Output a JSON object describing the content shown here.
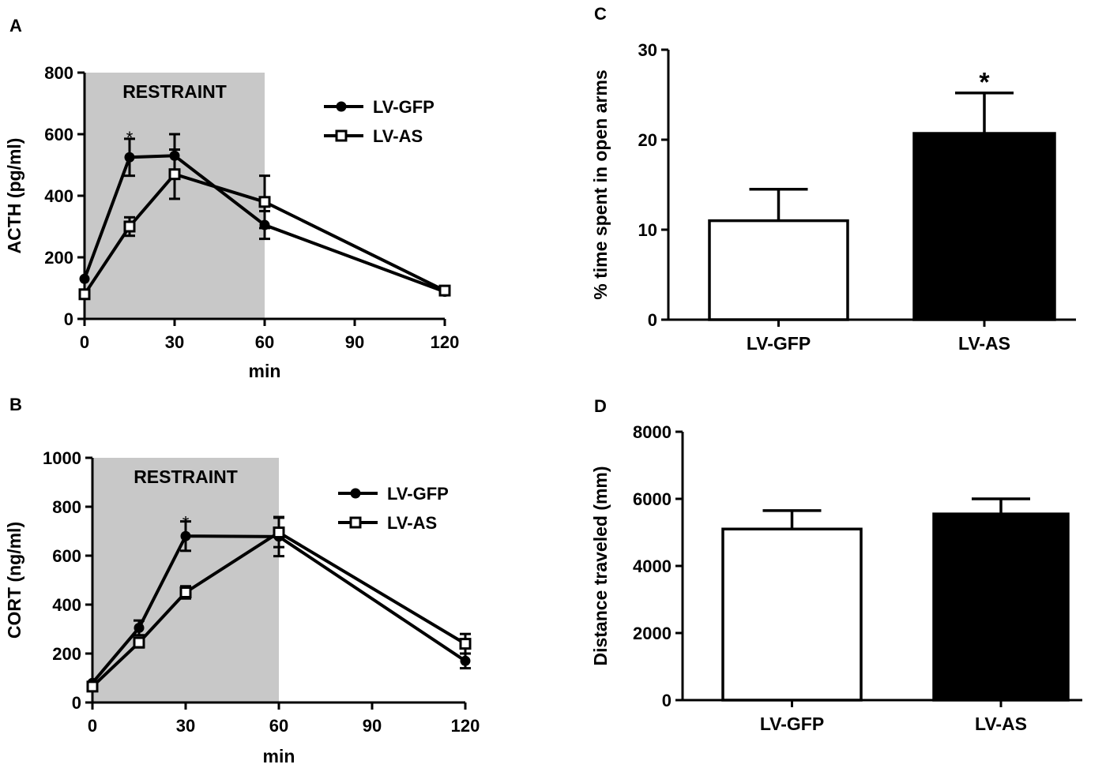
{
  "chart_data": [
    {
      "panel": "A",
      "type": "line",
      "xlabel": "min",
      "ylabel": "ACTH (pg/ml)",
      "x_ticks": [
        0,
        30,
        60,
        90,
        120
      ],
      "y_ticks": [
        0,
        200,
        400,
        600,
        800
      ],
      "xlim": [
        0,
        120
      ],
      "ylim": [
        0,
        800
      ],
      "shaded_region": {
        "label": "RESTRAINT",
        "x_from": 0,
        "x_to": 60
      },
      "legend_position": "top-right",
      "series": [
        {
          "name": "LV-GFP",
          "marker": "filled-circle",
          "x": [
            0,
            15,
            30,
            60,
            120
          ],
          "values": [
            130,
            525,
            530,
            305,
            88
          ],
          "errors": [
            0,
            60,
            70,
            45,
            10
          ]
        },
        {
          "name": "LV-AS",
          "marker": "open-square",
          "x": [
            0,
            15,
            30,
            60,
            120
          ],
          "values": [
            80,
            300,
            470,
            380,
            92
          ],
          "errors": [
            0,
            30,
            80,
            85,
            10
          ]
        }
      ],
      "annotations": [
        {
          "text": "*",
          "x": 15,
          "y": 600
        }
      ]
    },
    {
      "panel": "B",
      "type": "line",
      "xlabel": "min",
      "ylabel": "CORT (ng/ml)",
      "x_ticks": [
        0,
        30,
        60,
        90,
        120
      ],
      "y_ticks": [
        0,
        200,
        400,
        600,
        800,
        1000
      ],
      "xlim": [
        0,
        120
      ],
      "ylim": [
        0,
        1000
      ],
      "shaded_region": {
        "label": "RESTRAINT",
        "x_from": 0,
        "x_to": 60
      },
      "legend_position": "top-right",
      "series": [
        {
          "name": "LV-GFP",
          "marker": "filled-circle",
          "x": [
            0,
            15,
            30,
            60,
            120
          ],
          "values": [
            80,
            305,
            680,
            678,
            170
          ],
          "errors": [
            0,
            30,
            60,
            80,
            30
          ]
        },
        {
          "name": "LV-AS",
          "marker": "open-square",
          "x": [
            0,
            15,
            30,
            60,
            120
          ],
          "values": [
            65,
            245,
            450,
            695,
            240
          ],
          "errors": [
            0,
            20,
            25,
            60,
            40
          ]
        }
      ],
      "annotations": [
        {
          "text": "*",
          "x": 30,
          "y": 750
        }
      ]
    },
    {
      "panel": "C",
      "type": "bar",
      "categories": [
        "LV-GFP",
        "LV-AS"
      ],
      "values": [
        11,
        20.7
      ],
      "errors": [
        3.5,
        4.5
      ],
      "fills": [
        "#ffffff",
        "#000000"
      ],
      "ylabel": "% time spent in open arms",
      "xlabel": "",
      "y_ticks": [
        0,
        10,
        20,
        30
      ],
      "ylim": [
        0,
        30
      ],
      "annotations": [
        {
          "text": "*",
          "category": "LV-AS"
        }
      ]
    },
    {
      "panel": "D",
      "type": "bar",
      "categories": [
        "LV-GFP",
        "LV-AS"
      ],
      "values": [
        5100,
        5550
      ],
      "errors": [
        550,
        450
      ],
      "fills": [
        "#ffffff",
        "#000000"
      ],
      "ylabel": "Distance  traveled (mm)",
      "xlabel": "",
      "y_ticks": [
        0,
        2000,
        4000,
        6000,
        8000
      ],
      "ylim": [
        0,
        8000
      ]
    }
  ]
}
